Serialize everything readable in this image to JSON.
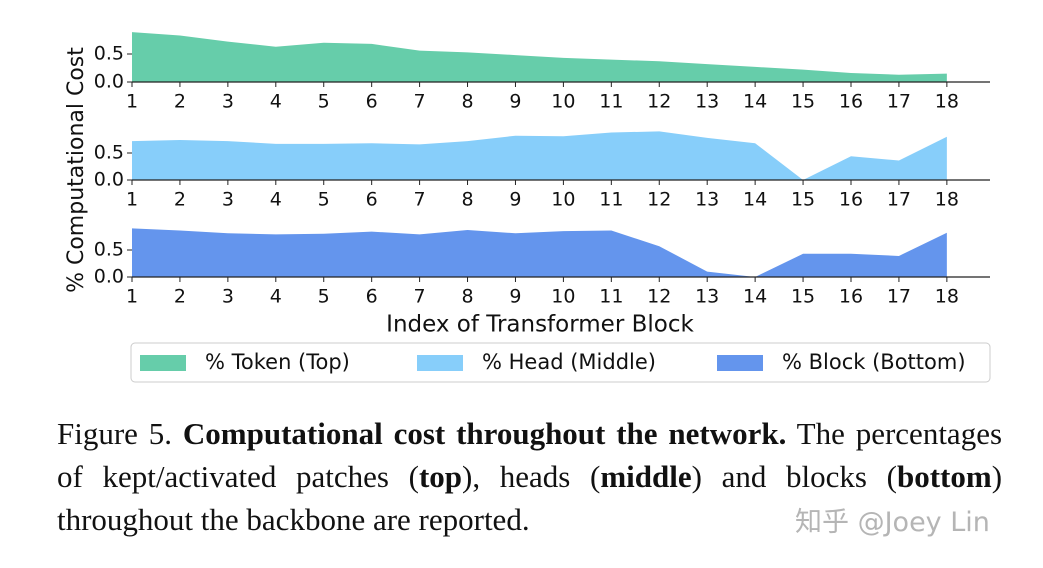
{
  "chart_data": [
    {
      "type": "area",
      "x": [
        1,
        2,
        3,
        4,
        5,
        6,
        7,
        8,
        9,
        10,
        11,
        12,
        13,
        14,
        15,
        16,
        17,
        18
      ],
      "series": [
        {
          "name": "% Token (Top)",
          "color": "#66cdaa",
          "values": [
            0.89,
            0.83,
            0.72,
            0.63,
            0.7,
            0.68,
            0.56,
            0.53,
            0.48,
            0.43,
            0.4,
            0.37,
            0.32,
            0.27,
            0.22,
            0.16,
            0.13,
            0.15
          ]
        }
      ],
      "xlim": [
        1,
        18.9
      ],
      "ylim": [
        0,
        1
      ],
      "xticks": [
        1,
        2,
        3,
        4,
        5,
        6,
        7,
        8,
        9,
        10,
        11,
        12,
        13,
        14,
        15,
        16,
        17,
        18
      ],
      "yticks": [
        {
          "value": 0,
          "label": "0.0"
        },
        0.5
      ]
    },
    {
      "type": "area",
      "x": [
        1,
        2,
        3,
        4,
        5,
        6,
        7,
        8,
        9,
        10,
        11,
        12,
        13,
        14,
        15,
        16,
        17,
        18
      ],
      "series": [
        {
          "name": "% Head (Middle)",
          "color": "#87cefa",
          "values": [
            0.72,
            0.74,
            0.72,
            0.67,
            0.67,
            0.68,
            0.66,
            0.72,
            0.82,
            0.81,
            0.88,
            0.9,
            0.78,
            0.68,
            0.0,
            0.44,
            0.36,
            0.8
          ]
        }
      ],
      "xlim": [
        1,
        18.9
      ],
      "ylim": [
        0,
        1
      ],
      "xticks": [
        1,
        2,
        3,
        4,
        5,
        6,
        7,
        8,
        9,
        10,
        11,
        12,
        13,
        14,
        15,
        16,
        17,
        18
      ],
      "yticks": [
        {
          "value": 0,
          "label": "0.0"
        },
        0.5
      ],
      "ylabel": "% Computational Cost"
    },
    {
      "type": "area",
      "x": [
        1,
        2,
        3,
        4,
        5,
        6,
        7,
        8,
        9,
        10,
        11,
        12,
        13,
        14,
        15,
        16,
        17,
        18
      ],
      "series": [
        {
          "name": "% Block (Bottom)",
          "color": "#6495ed",
          "values": [
            0.9,
            0.86,
            0.81,
            0.79,
            0.8,
            0.84,
            0.79,
            0.87,
            0.81,
            0.85,
            0.86,
            0.57,
            0.1,
            0.0,
            0.43,
            0.43,
            0.39,
            0.82
          ]
        }
      ],
      "xlim": [
        1,
        18.9
      ],
      "ylim": [
        0,
        1
      ],
      "xticks": [
        1,
        2,
        3,
        4,
        5,
        6,
        7,
        8,
        9,
        10,
        11,
        12,
        13,
        14,
        15,
        16,
        17,
        18
      ],
      "yticks": [
        {
          "value": 0,
          "label": "0.0"
        },
        0.5
      ],
      "xlabel": "Index of Transformer Block"
    }
  ],
  "caption": {
    "segments": [
      {
        "text": "Figure 5. ",
        "bold": false
      },
      {
        "text": "Computational cost throughout the network.",
        "bold": true
      },
      {
        "text": " The percentages of kept/activated patches (",
        "bold": false
      },
      {
        "text": "top",
        "bold": true
      },
      {
        "text": "), heads (",
        "bold": false
      },
      {
        "text": "middle",
        "bold": true
      },
      {
        "text": ") and blocks (",
        "bold": false
      },
      {
        "text": "bottom",
        "bold": true
      },
      {
        "text": ") throughout the backbone are reported.",
        "bold": false
      }
    ]
  },
  "watermark": "知乎 @Joey Lin"
}
